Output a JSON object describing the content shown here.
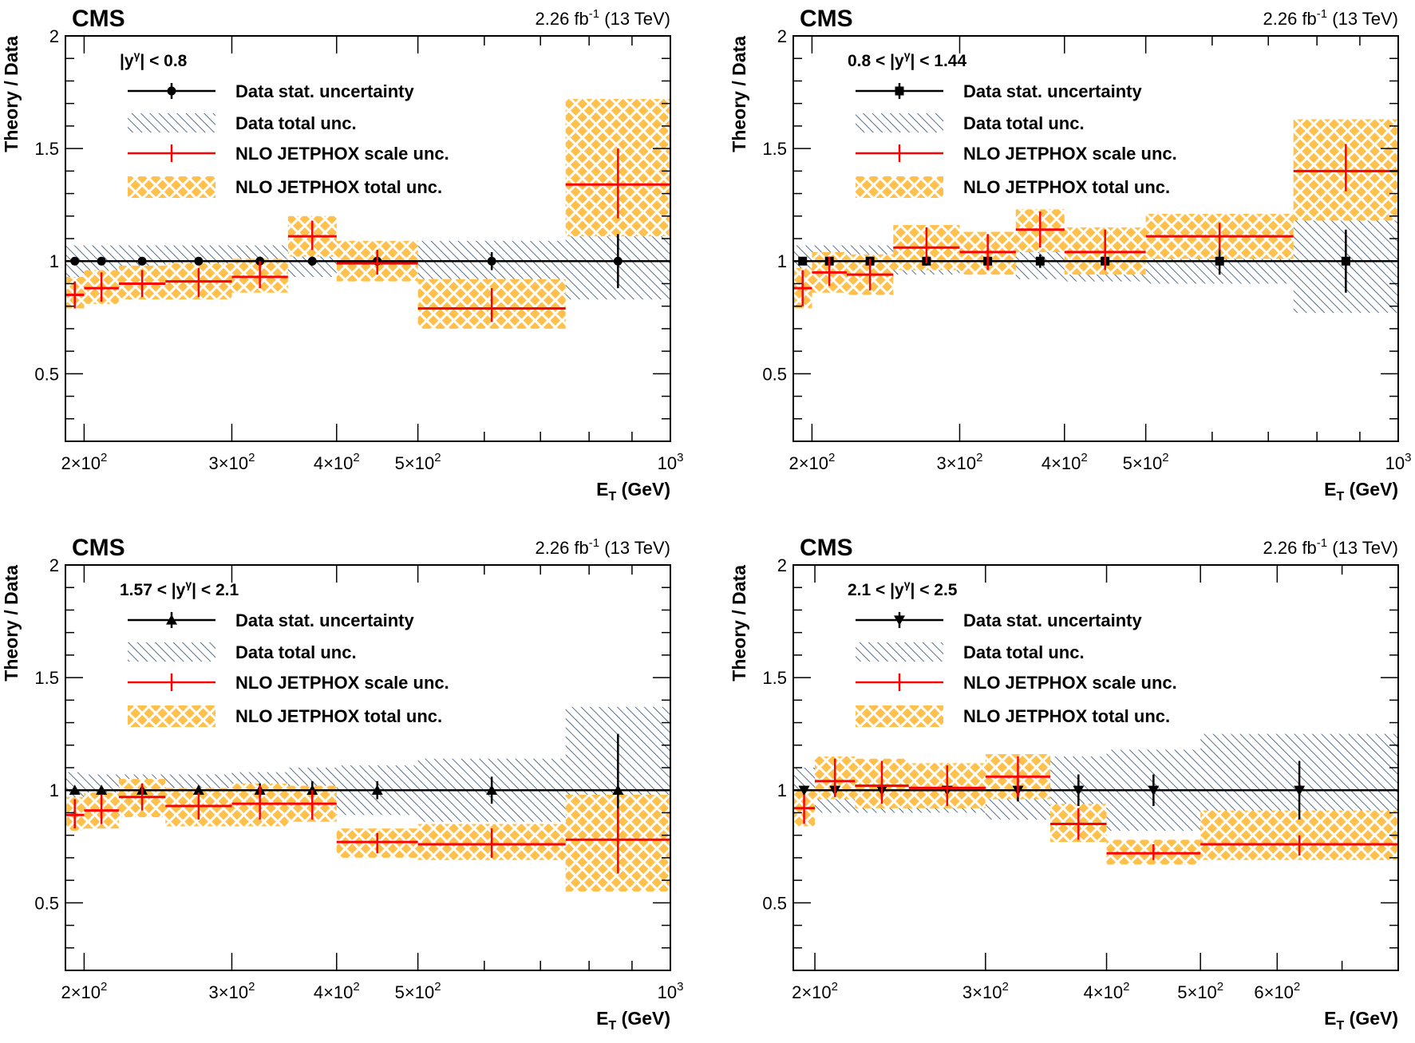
{
  "colors": {
    "data": "#000000",
    "theory_scale": "#ff0000",
    "theory_total": "#ffc04c",
    "data_total_hatch": "#2d4e6e"
  },
  "chart_data": [
    {
      "type": "bar",
      "title": "CMS",
      "lumi": "2.26 fb",
      "lumi_sup": "-1",
      "lumi_suffix": " (13 TeV)",
      "ylabel": "Theory / Data",
      "xlabel": "E",
      "xlabel_sub": "T",
      "xlabel_unit": " (GeV)",
      "xscale": "log",
      "xlim": [
        190,
        1000
      ],
      "ylim": [
        0.2,
        2.0
      ],
      "yticks": [
        0.5,
        1,
        1.5,
        2
      ],
      "ytick_labels": [
        "0.5",
        "1",
        "1.5",
        "2"
      ],
      "xticks": [
        {
          "value": 200,
          "mant": "2",
          "exp": "2"
        },
        {
          "value": 300,
          "mant": "3",
          "exp": "2"
        },
        {
          "value": 400,
          "mant": "4",
          "exp": "2"
        },
        {
          "value": 500,
          "mant": "5",
          "exp": "2"
        },
        {
          "value": 1000,
          "mant": "",
          "exp": "3"
        }
      ],
      "range_label": {
        "pre": "|y",
        "sup": "γ",
        "post": "| < 0.8"
      },
      "marker": "circle",
      "legend": {
        "stat": "Data stat. uncertainty",
        "total": "Data total unc.",
        "scale": "NLO JETPHOX scale unc.",
        "theory_total": "NLO JETPHOX total unc."
      },
      "bins": [
        {
          "lo": 190,
          "hi": 200,
          "theory": 0.85,
          "scale": [
            0.79,
            0.91
          ],
          "theory_total": [
            0.79,
            0.93
          ],
          "data_total": [
            0.92,
            1.07
          ],
          "stat": [
            0.99,
            1.01
          ]
        },
        {
          "lo": 200,
          "hi": 220,
          "theory": 0.88,
          "scale": [
            0.82,
            0.95
          ],
          "theory_total": [
            0.81,
            0.96
          ],
          "data_total": [
            0.93,
            1.07
          ],
          "stat": [
            0.99,
            1.01
          ]
        },
        {
          "lo": 220,
          "hi": 250,
          "theory": 0.9,
          "scale": [
            0.84,
            0.96
          ],
          "theory_total": [
            0.83,
            0.98
          ],
          "data_total": [
            0.93,
            1.07
          ],
          "stat": [
            0.99,
            1.01
          ]
        },
        {
          "lo": 250,
          "hi": 300,
          "theory": 0.91,
          "scale": [
            0.84,
            0.97
          ],
          "theory_total": [
            0.83,
            0.99
          ],
          "data_total": [
            0.93,
            1.07
          ],
          "stat": [
            0.99,
            1.01
          ]
        },
        {
          "lo": 300,
          "hi": 350,
          "theory": 0.93,
          "scale": [
            0.88,
            1.0
          ],
          "theory_total": [
            0.86,
            1.01
          ],
          "data_total": [
            0.94,
            1.07
          ],
          "stat": [
            0.98,
            1.02
          ]
        },
        {
          "lo": 350,
          "hi": 400,
          "theory": 1.11,
          "scale": [
            1.05,
            1.18
          ],
          "theory_total": [
            1.02,
            1.2
          ],
          "data_total": [
            0.93,
            1.07
          ],
          "stat": [
            0.98,
            1.02
          ]
        },
        {
          "lo": 400,
          "hi": 500,
          "theory": 0.99,
          "scale": [
            0.94,
            1.05
          ],
          "theory_total": [
            0.91,
            1.09
          ],
          "data_total": [
            0.93,
            1.08
          ],
          "stat": [
            0.97,
            1.03
          ]
        },
        {
          "lo": 500,
          "hi": 750,
          "theory": 0.79,
          "scale": [
            0.73,
            0.88
          ],
          "theory_total": [
            0.7,
            0.92
          ],
          "data_total": [
            0.92,
            1.09
          ],
          "stat": [
            0.96,
            1.04
          ]
        },
        {
          "lo": 750,
          "hi": 1000,
          "theory": 1.34,
          "scale": [
            1.19,
            1.5
          ],
          "theory_total": [
            1.11,
            1.72
          ],
          "data_total": [
            0.83,
            1.17
          ],
          "stat": [
            0.88,
            1.12
          ]
        }
      ]
    },
    {
      "type": "bar",
      "title": "CMS",
      "lumi": "2.26 fb",
      "lumi_sup": "-1",
      "lumi_suffix": " (13 TeV)",
      "ylabel": "Theory / Data",
      "xlabel": "E",
      "xlabel_sub": "T",
      "xlabel_unit": " (GeV)",
      "xscale": "log",
      "xlim": [
        190,
        1000
      ],
      "ylim": [
        0.2,
        2.0
      ],
      "yticks": [
        0.5,
        1,
        1.5,
        2
      ],
      "ytick_labels": [
        "0.5",
        "1",
        "1.5",
        "2"
      ],
      "xticks": [
        {
          "value": 200,
          "mant": "2",
          "exp": "2"
        },
        {
          "value": 300,
          "mant": "3",
          "exp": "2"
        },
        {
          "value": 400,
          "mant": "4",
          "exp": "2"
        },
        {
          "value": 500,
          "mant": "5",
          "exp": "2"
        },
        {
          "value": 1000,
          "mant": "",
          "exp": "3"
        }
      ],
      "range_label": {
        "pre": "0.8 < |y",
        "sup": "γ",
        "post": "| < 1.44"
      },
      "marker": "square",
      "legend": {
        "stat": "Data stat. uncertainty",
        "total": "Data total unc.",
        "scale": "NLO JETPHOX scale unc.",
        "theory_total": "NLO JETPHOX total unc."
      },
      "bins": [
        {
          "lo": 190,
          "hi": 200,
          "theory": 0.88,
          "scale": [
            0.8,
            0.96
          ],
          "theory_total": [
            0.79,
            0.97
          ],
          "data_total": [
            0.93,
            1.07
          ],
          "stat": [
            0.99,
            1.01
          ]
        },
        {
          "lo": 200,
          "hi": 220,
          "theory": 0.95,
          "scale": [
            0.89,
            1.02
          ],
          "theory_total": [
            0.86,
            1.04
          ],
          "data_total": [
            0.93,
            1.07
          ],
          "stat": [
            0.98,
            1.02
          ]
        },
        {
          "lo": 220,
          "hi": 250,
          "theory": 0.94,
          "scale": [
            0.87,
            1.01
          ],
          "theory_total": [
            0.85,
            1.03
          ],
          "data_total": [
            0.93,
            1.07
          ],
          "stat": [
            0.98,
            1.02
          ]
        },
        {
          "lo": 250,
          "hi": 300,
          "theory": 1.06,
          "scale": [
            0.99,
            1.15
          ],
          "theory_total": [
            0.96,
            1.16
          ],
          "data_total": [
            0.94,
            1.08
          ],
          "stat": [
            0.98,
            1.02
          ]
        },
        {
          "lo": 300,
          "hi": 350,
          "theory": 1.04,
          "scale": [
            0.96,
            1.12
          ],
          "theory_total": [
            0.94,
            1.13
          ],
          "data_total": [
            0.94,
            1.08
          ],
          "stat": [
            0.98,
            1.02
          ]
        },
        {
          "lo": 350,
          "hi": 400,
          "theory": 1.14,
          "scale": [
            1.06,
            1.22
          ],
          "theory_total": [
            1.04,
            1.23
          ],
          "data_total": [
            0.92,
            1.08
          ],
          "stat": [
            0.97,
            1.03
          ]
        },
        {
          "lo": 400,
          "hi": 500,
          "theory": 1.04,
          "scale": [
            0.96,
            1.14
          ],
          "theory_total": [
            0.94,
            1.15
          ],
          "data_total": [
            0.91,
            1.09
          ],
          "stat": [
            0.97,
            1.03
          ]
        },
        {
          "lo": 500,
          "hi": 750,
          "theory": 1.11,
          "scale": [
            1.05,
            1.17
          ],
          "theory_total": [
            1.01,
            1.21
          ],
          "data_total": [
            0.9,
            1.1
          ],
          "stat": [
            0.94,
            1.06
          ]
        },
        {
          "lo": 750,
          "hi": 1000,
          "theory": 1.4,
          "scale": [
            1.31,
            1.52
          ],
          "theory_total": [
            1.18,
            1.63
          ],
          "data_total": [
            0.77,
            1.23
          ],
          "stat": [
            0.86,
            1.14
          ]
        }
      ]
    },
    {
      "type": "bar",
      "title": "CMS",
      "lumi": "2.26 fb",
      "lumi_sup": "-1",
      "lumi_suffix": " (13 TeV)",
      "ylabel": "Theory / Data",
      "xlabel": "E",
      "xlabel_sub": "T",
      "xlabel_unit": " (GeV)",
      "xscale": "log",
      "xlim": [
        190,
        1000
      ],
      "ylim": [
        0.2,
        2.0
      ],
      "yticks": [
        0.5,
        1,
        1.5,
        2
      ],
      "ytick_labels": [
        "0.5",
        "1",
        "1.5",
        "2"
      ],
      "xticks": [
        {
          "value": 200,
          "mant": "2",
          "exp": "2"
        },
        {
          "value": 300,
          "mant": "3",
          "exp": "2"
        },
        {
          "value": 400,
          "mant": "4",
          "exp": "2"
        },
        {
          "value": 500,
          "mant": "5",
          "exp": "2"
        },
        {
          "value": 1000,
          "mant": "",
          "exp": "3"
        }
      ],
      "range_label": {
        "pre": "1.57 < |y",
        "sup": "γ",
        "post": "| < 2.1"
      },
      "marker": "triangle-up",
      "legend": {
        "stat": "Data stat. uncertainty",
        "total": "Data total unc.",
        "scale": "NLO JETPHOX scale unc.",
        "theory_total": "NLO JETPHOX total unc."
      },
      "bins": [
        {
          "lo": 190,
          "hi": 200,
          "theory": 0.89,
          "scale": [
            0.83,
            0.96
          ],
          "theory_total": [
            0.82,
            0.97
          ],
          "data_total": [
            0.93,
            1.08
          ],
          "stat": [
            0.99,
            1.01
          ]
        },
        {
          "lo": 200,
          "hi": 220,
          "theory": 0.91,
          "scale": [
            0.85,
            0.98
          ],
          "theory_total": [
            0.83,
            0.99
          ],
          "data_total": [
            0.93,
            1.07
          ],
          "stat": [
            0.99,
            1.01
          ]
        },
        {
          "lo": 220,
          "hi": 250,
          "theory": 0.97,
          "scale": [
            0.91,
            1.03
          ],
          "theory_total": [
            0.88,
            1.05
          ],
          "data_total": [
            0.93,
            1.07
          ],
          "stat": [
            0.99,
            1.01
          ]
        },
        {
          "lo": 250,
          "hi": 300,
          "theory": 0.93,
          "scale": [
            0.87,
            0.99
          ],
          "theory_total": [
            0.84,
            1.01
          ],
          "data_total": [
            0.93,
            1.07
          ],
          "stat": [
            0.98,
            1.02
          ]
        },
        {
          "lo": 300,
          "hi": 350,
          "theory": 0.94,
          "scale": [
            0.87,
            1.02
          ],
          "theory_total": [
            0.84,
            1.03
          ],
          "data_total": [
            0.93,
            1.08
          ],
          "stat": [
            0.97,
            1.03
          ]
        },
        {
          "lo": 350,
          "hi": 400,
          "theory": 0.94,
          "scale": [
            0.87,
            1.0
          ],
          "theory_total": [
            0.86,
            1.02
          ],
          "data_total": [
            0.9,
            1.1
          ],
          "stat": [
            0.96,
            1.04
          ]
        },
        {
          "lo": 400,
          "hi": 500,
          "theory": 0.77,
          "scale": [
            0.72,
            0.81
          ],
          "theory_total": [
            0.7,
            0.83
          ],
          "data_total": [
            0.89,
            1.11
          ],
          "stat": [
            0.96,
            1.04
          ]
        },
        {
          "lo": 500,
          "hi": 750,
          "theory": 0.76,
          "scale": [
            0.7,
            0.83
          ],
          "theory_total": [
            0.69,
            0.85
          ],
          "data_total": [
            0.86,
            1.14
          ],
          "stat": [
            0.94,
            1.06
          ]
        },
        {
          "lo": 750,
          "hi": 1000,
          "theory": 0.78,
          "scale": [
            0.63,
            0.92
          ],
          "theory_total": [
            0.55,
            0.98
          ],
          "data_total": [
            0.63,
            1.37
          ],
          "stat": [
            0.75,
            1.25
          ]
        }
      ]
    },
    {
      "type": "bar",
      "title": "CMS",
      "lumi": "2.26 fb",
      "lumi_sup": "-1",
      "lumi_suffix": " (13 TeV)",
      "ylabel": "Theory / Data",
      "xlabel": "E",
      "xlabel_sub": "T",
      "xlabel_unit": " (GeV)",
      "xscale": "log",
      "xlim": [
        190,
        800
      ],
      "ylim": [
        0.2,
        2.0
      ],
      "yticks": [
        0.5,
        1,
        1.5,
        2
      ],
      "ytick_labels": [
        "0.5",
        "1",
        "1.5",
        "2"
      ],
      "xticks": [
        {
          "value": 200,
          "mant": "2",
          "exp": "2"
        },
        {
          "value": 300,
          "mant": "3",
          "exp": "2"
        },
        {
          "value": 400,
          "mant": "4",
          "exp": "2"
        },
        {
          "value": 500,
          "mant": "5",
          "exp": "2"
        },
        {
          "value": 600,
          "mant": "6",
          "exp": "2"
        }
      ],
      "range_label": {
        "pre": "2.1 < |y",
        "sup": "γ",
        "post": "| < 2.5"
      },
      "marker": "triangle-down",
      "legend": {
        "stat": "Data stat. uncertainty",
        "total": "Data total unc.",
        "scale": "NLO JETPHOX scale unc.",
        "theory_total": "NLO JETPHOX total unc."
      },
      "bins": [
        {
          "lo": 190,
          "hi": 200,
          "theory": 0.92,
          "scale": [
            0.85,
            0.98
          ],
          "theory_total": [
            0.84,
            1.0
          ],
          "data_total": [
            0.9,
            1.1
          ],
          "stat": [
            0.98,
            1.02
          ]
        },
        {
          "lo": 200,
          "hi": 220,
          "theory": 1.04,
          "scale": [
            0.97,
            1.14
          ],
          "theory_total": [
            0.96,
            1.15
          ],
          "data_total": [
            0.9,
            1.1
          ],
          "stat": [
            0.97,
            1.03
          ]
        },
        {
          "lo": 220,
          "hi": 250,
          "theory": 1.02,
          "scale": [
            0.94,
            1.13
          ],
          "theory_total": [
            0.92,
            1.14
          ],
          "data_total": [
            0.9,
            1.1
          ],
          "stat": [
            0.97,
            1.03
          ]
        },
        {
          "lo": 250,
          "hi": 300,
          "theory": 1.01,
          "scale": [
            0.93,
            1.11
          ],
          "theory_total": [
            0.92,
            1.12
          ],
          "data_total": [
            0.9,
            1.1
          ],
          "stat": [
            0.96,
            1.04
          ]
        },
        {
          "lo": 300,
          "hi": 350,
          "theory": 1.06,
          "scale": [
            0.97,
            1.15
          ],
          "theory_total": [
            0.96,
            1.16
          ],
          "data_total": [
            0.87,
            1.13
          ],
          "stat": [
            0.95,
            1.05
          ]
        },
        {
          "lo": 350,
          "hi": 400,
          "theory": 0.85,
          "scale": [
            0.78,
            0.92
          ],
          "theory_total": [
            0.77,
            0.94
          ],
          "data_total": [
            0.85,
            1.15
          ],
          "stat": [
            0.93,
            1.07
          ]
        },
        {
          "lo": 400,
          "hi": 500,
          "theory": 0.72,
          "scale": [
            0.69,
            0.76
          ],
          "theory_total": [
            0.67,
            0.78
          ],
          "data_total": [
            0.82,
            1.18
          ],
          "stat": [
            0.93,
            1.07
          ]
        },
        {
          "lo": 500,
          "hi": 800,
          "theory": 0.76,
          "scale": [
            0.71,
            0.8
          ],
          "theory_total": [
            0.69,
            0.91
          ],
          "data_total": [
            0.75,
            1.25
          ],
          "stat": [
            0.87,
            1.13
          ]
        }
      ]
    }
  ]
}
